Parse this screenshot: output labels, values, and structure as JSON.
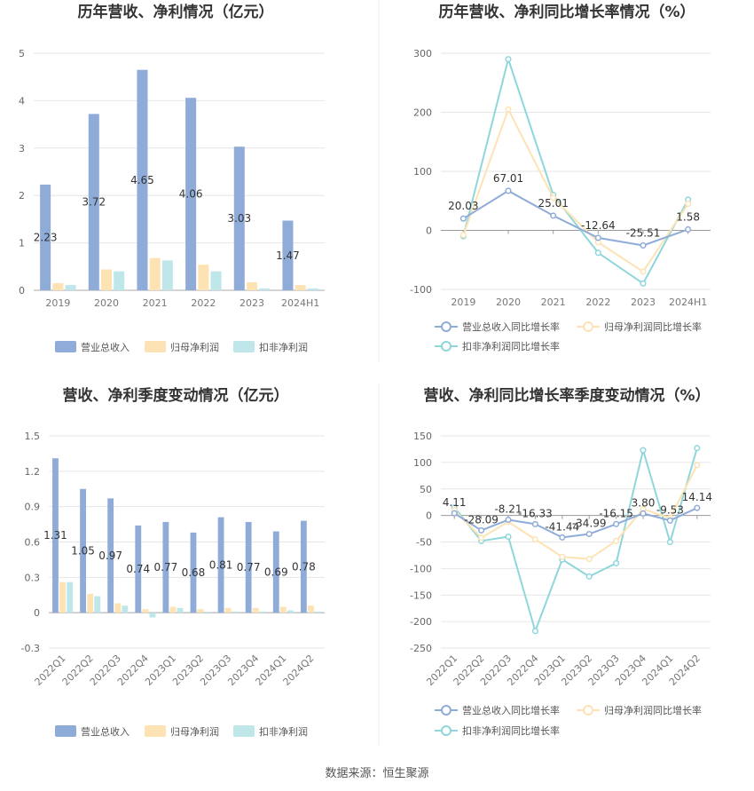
{
  "source_text": "数据来源：恒生聚源",
  "legend_icon_colors": [
    "#8facd9",
    "#fde3b4",
    "#bfe7ea"
  ],
  "chart_data": [
    {
      "id": "annual-bar",
      "type": "bar",
      "title": "历年营收、净利情况（亿元）",
      "categories": [
        "2019",
        "2020",
        "2021",
        "2022",
        "2023",
        "2024H1"
      ],
      "ylim": [
        0,
        5
      ],
      "yticks": [
        0,
        1,
        2,
        3,
        4,
        5
      ],
      "grid": true,
      "legend_position": "bottom",
      "series": [
        {
          "name": "营业总收入",
          "color": "#8facd9",
          "values": [
            2.23,
            3.72,
            4.65,
            4.06,
            3.03,
            1.47
          ],
          "labels": [
            "2.23",
            "3.72",
            "4.65",
            "4.06",
            "3.03",
            "1.47"
          ]
        },
        {
          "name": "归母净利润",
          "color": "#fde3b4",
          "values": [
            0.15,
            0.44,
            0.68,
            0.54,
            0.17,
            0.11
          ]
        },
        {
          "name": "扣非净利润",
          "color": "#bfe7ea",
          "values": [
            0.11,
            0.4,
            0.63,
            0.4,
            0.04,
            0.04
          ]
        }
      ]
    },
    {
      "id": "annual-line",
      "type": "line",
      "title": "历年营收、净利同比增长率情况（%）",
      "categories": [
        "2019",
        "2020",
        "2021",
        "2022",
        "2023",
        "2024H1"
      ],
      "ylim": [
        -100,
        300
      ],
      "yticks": [
        -100,
        0,
        100,
        200,
        300
      ],
      "grid": true,
      "legend_position": "bottom",
      "series": [
        {
          "name": "营业总收入同比增长率",
          "color": "#8facd9",
          "values": [
            20.03,
            67.01,
            25.01,
            -12.64,
            -25.51,
            1.58
          ],
          "labels": [
            "20.03",
            "67.01",
            "25.01",
            "-12.64",
            "-25.51",
            "1.58"
          ]
        },
        {
          "name": "归母净利润同比增长率",
          "color": "#fde3b4",
          "values": [
            -8,
            205,
            55,
            -20,
            -70,
            45
          ]
        },
        {
          "name": "扣非净利润同比增长率",
          "color": "#8fd6db",
          "values": [
            -10,
            290,
            60,
            -38,
            -90,
            52
          ]
        }
      ]
    },
    {
      "id": "quarter-bar",
      "type": "bar",
      "title": "营收、净利季度变动情况（亿元）",
      "categories": [
        "2022Q1",
        "2022Q2",
        "2022Q3",
        "2022Q4",
        "2023Q1",
        "2023Q2",
        "2023Q3",
        "2023Q4",
        "2024Q1",
        "2024Q2"
      ],
      "ylim": [
        -0.3,
        1.5
      ],
      "yticks": [
        -0.3,
        0,
        0.3,
        0.6,
        0.9,
        1.2,
        1.5
      ],
      "grid": true,
      "legend_position": "bottom",
      "series": [
        {
          "name": "营业总收入",
          "color": "#8facd9",
          "values": [
            1.31,
            1.05,
            0.97,
            0.74,
            0.77,
            0.68,
            0.81,
            0.77,
            0.69,
            0.78
          ],
          "labels": [
            "1.31",
            "1.05",
            "0.97",
            "0.74",
            "0.77",
            "0.68",
            "0.81",
            "0.77",
            "0.69",
            "0.78"
          ]
        },
        {
          "name": "归母净利润",
          "color": "#fde3b4",
          "values": [
            0.26,
            0.16,
            0.08,
            0.03,
            0.05,
            0.03,
            0.04,
            0.04,
            0.05,
            0.06
          ]
        },
        {
          "name": "扣非净利润",
          "color": "#bfe7ea",
          "values": [
            0.26,
            0.14,
            0.06,
            -0.04,
            0.04,
            0.0,
            0.01,
            0.01,
            0.02,
            0.01
          ]
        }
      ]
    },
    {
      "id": "quarter-line",
      "type": "line",
      "title": "营收、净利同比增长率季度变动情况（%）",
      "categories": [
        "2022Q1",
        "2022Q2",
        "2022Q3",
        "2022Q4",
        "2023Q1",
        "2023Q2",
        "2023Q3",
        "2023Q4",
        "2024Q1",
        "2024Q2"
      ],
      "ylim": [
        -250,
        150
      ],
      "yticks": [
        -250,
        -200,
        -150,
        -100,
        -50,
        0,
        50,
        100,
        150
      ],
      "grid": true,
      "legend_position": "bottom",
      "series": [
        {
          "name": "营业总收入同比增长率",
          "color": "#8facd9",
          "values": [
            4.11,
            -28.09,
            -8.21,
            -16.33,
            -41.44,
            -34.99,
            -16.15,
            3.8,
            -9.53,
            14.14
          ],
          "labels": [
            "4.11",
            "-28.09",
            "-8.21",
            "-16.33",
            "-41.44",
            "-34.99",
            "-16.15",
            "3.80",
            "-9.53",
            "14.14"
          ]
        },
        {
          "name": "归母净利润同比增长率",
          "color": "#fde3b4",
          "values": [
            10,
            -42,
            -12,
            -45,
            -78,
            -82,
            -48,
            12,
            -5,
            95
          ]
        },
        {
          "name": "扣非净利润同比增长率",
          "color": "#8fd6db",
          "values": [
            15,
            -48,
            -40,
            -218,
            -83,
            -115,
            -90,
            123,
            -50,
            127
          ]
        }
      ]
    }
  ]
}
